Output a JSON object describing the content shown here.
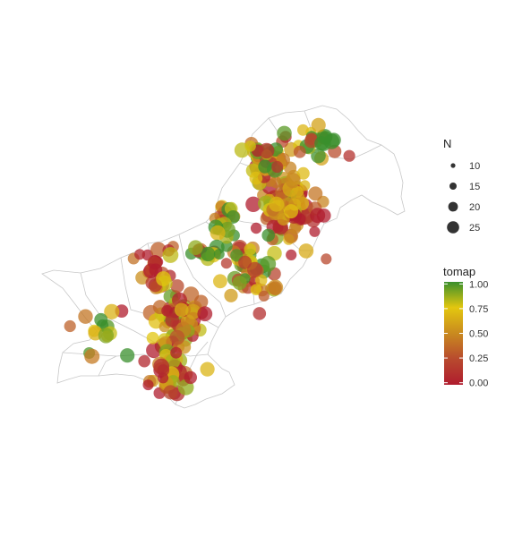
{
  "legend_size": {
    "title": "N",
    "entries": [
      {
        "label": "10",
        "value": 10
      },
      {
        "label": "15",
        "value": 15
      },
      {
        "label": "20",
        "value": 20
      },
      {
        "label": "25",
        "value": 25
      }
    ]
  },
  "legend_color": {
    "title": "tomap",
    "ticks": [
      "1.00",
      "0.75",
      "0.50",
      "0.25",
      "0.00"
    ],
    "range": [
      0,
      1
    ],
    "stops": [
      {
        "at": 0.0,
        "color": "#b01c2e"
      },
      {
        "at": 0.25,
        "color": "#b84a2e"
      },
      {
        "at": 0.5,
        "color": "#c98a1f"
      },
      {
        "at": 0.75,
        "color": "#e3c70f"
      },
      {
        "at": 1.0,
        "color": "#3a8f2c"
      }
    ]
  },
  "map": {
    "region": "Pakistan administrative districts",
    "border_color": "#bdbdbd",
    "point_opacity": 0.75
  }
}
